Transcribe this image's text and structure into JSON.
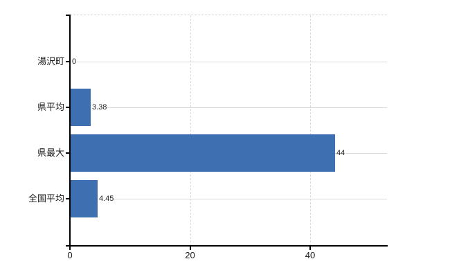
{
  "chart_data": {
    "type": "bar",
    "orientation": "horizontal",
    "title": "",
    "xlabel": "",
    "ylabel": "",
    "categories": [
      "湯沢町",
      "県平均",
      "県最大",
      "全国平均"
    ],
    "values": [
      0,
      3.38,
      44,
      4.45
    ],
    "value_labels": [
      "0",
      "3.38",
      "44",
      "4.45"
    ],
    "x_ticks": [
      0,
      20,
      40
    ],
    "x_tick_labels": [
      "0",
      "20",
      "40"
    ],
    "xlim": [
      0,
      52.9
    ],
    "grid": true,
    "legend": false,
    "gridline_style": {
      "horizontal": "solid",
      "vertical": "dashed",
      "top_boundary": "dashed"
    },
    "colors": {
      "bar": "#3e6fb1",
      "grid": "#d9d9d9",
      "axis": "#000000",
      "text": "#1a1a1a",
      "value_text": "#222222",
      "background": "#ffffff"
    }
  }
}
